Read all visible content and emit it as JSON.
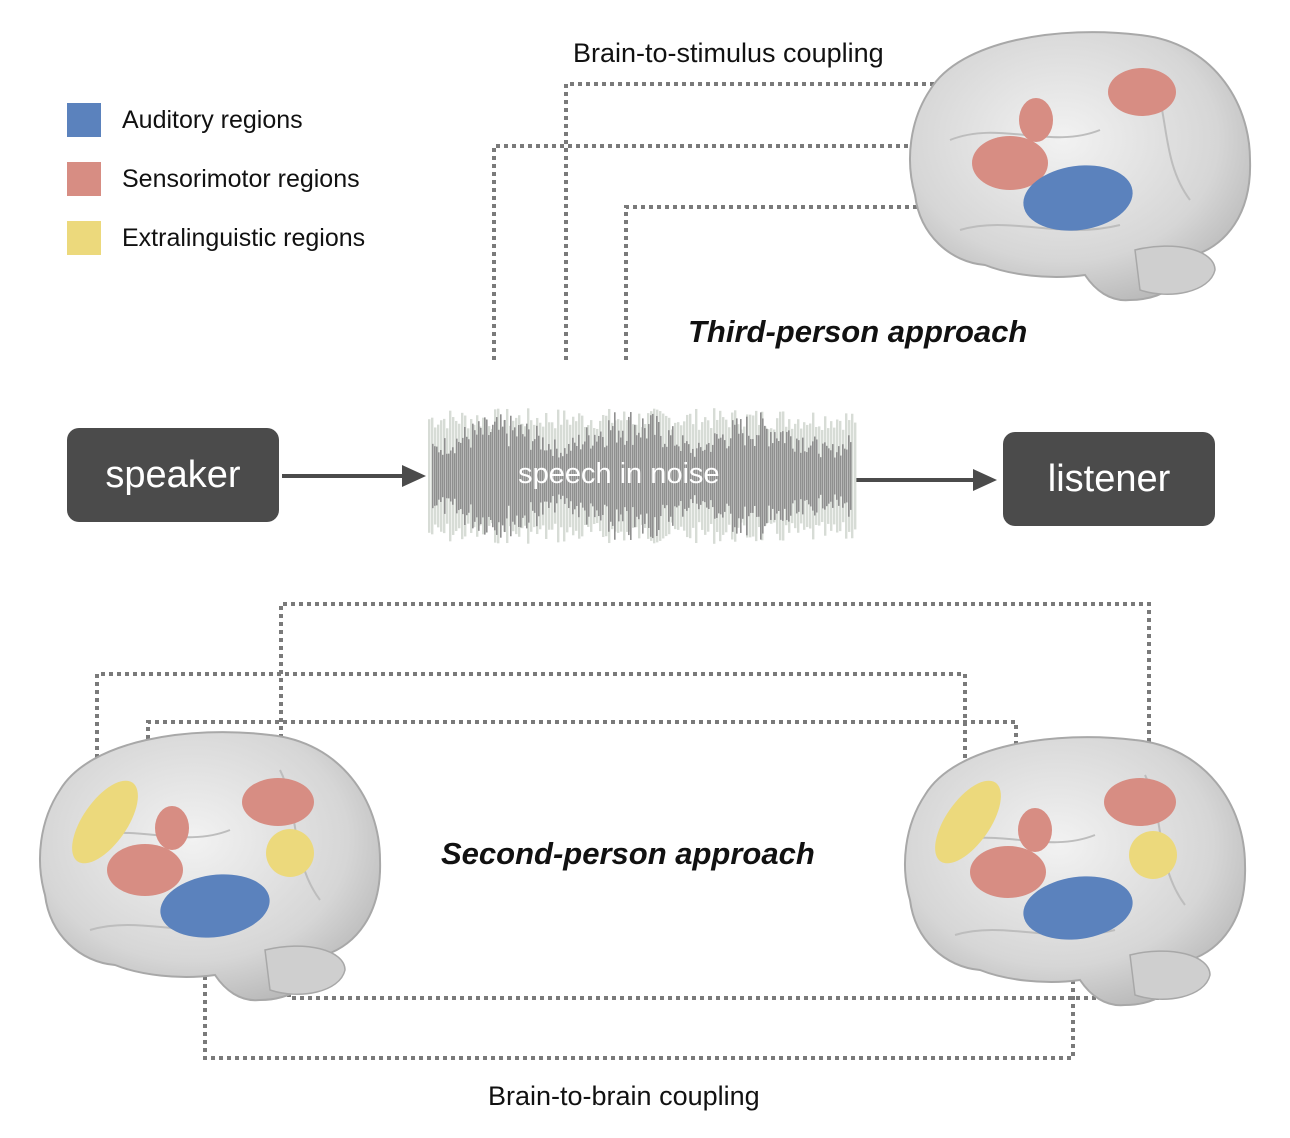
{
  "legend": {
    "items": [
      {
        "label": "Auditory regions",
        "color": "#5b82bd"
      },
      {
        "label": "Sensorimotor regions",
        "color": "#d78d83"
      },
      {
        "label": "Extralinguistic regions",
        "color": "#ecd97c"
      }
    ]
  },
  "top": {
    "coupling_label": "Brain-to-stimulus coupling",
    "approach_label": "Third-person approach"
  },
  "middle": {
    "speaker_label": "speaker",
    "stimulus_label": "speech in noise",
    "listener_label": "listener"
  },
  "bottom": {
    "approach_label": "Second-person approach",
    "coupling_label": "Brain-to-brain coupling"
  },
  "colors": {
    "auditory": "#5b82bd",
    "sensorimotor": "#d78d83",
    "extralinguistic": "#ecd97c",
    "box": "#4b4b4b",
    "brain": "#dcdcdc",
    "dots": "#7a7a7a"
  }
}
